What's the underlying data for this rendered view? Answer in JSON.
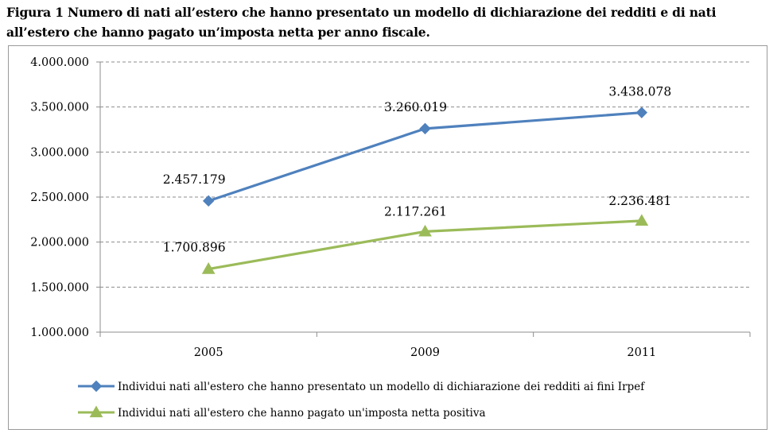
{
  "caption": {
    "line1": "Figura 1 Numero di nati all’estero che hanno presentato un modello di dichiarazione dei redditi e di nati",
    "line2": "all’estero che hanno pagato un’imposta netta per anno fiscale."
  },
  "chart_data": {
    "type": "line",
    "categories": [
      "2005",
      "2009",
      "2011"
    ],
    "ylim": [
      1000000,
      4000000
    ],
    "yticks": [
      1000000,
      1500000,
      2000000,
      2500000,
      3000000,
      3500000,
      4000000
    ],
    "ytick_labels": [
      "1.000.000",
      "1.500.000",
      "2.000.000",
      "2.500.000",
      "3.000.000",
      "3.500.000",
      "4.000.000"
    ],
    "grid": "horizontal-dashed",
    "legend_position": "bottom",
    "series": [
      {
        "name": "Individui nati all'estero che hanno presentato un modello di dichiarazione dei redditi ai fini Irpef",
        "values": [
          2457179,
          3260019,
          3438078
        ],
        "labels": [
          "2.457.179",
          "3.260.019",
          "3.438.078"
        ],
        "color": "#4f81bd",
        "marker": "diamond"
      },
      {
        "name": "Individui nati all'estero che hanno pagato un'imposta netta positiva",
        "values": [
          1700896,
          2117261,
          2236481
        ],
        "labels": [
          "1.700.896",
          "2.117.261",
          "2.236.481"
        ],
        "color": "#9bbb59",
        "marker": "triangle"
      }
    ]
  }
}
